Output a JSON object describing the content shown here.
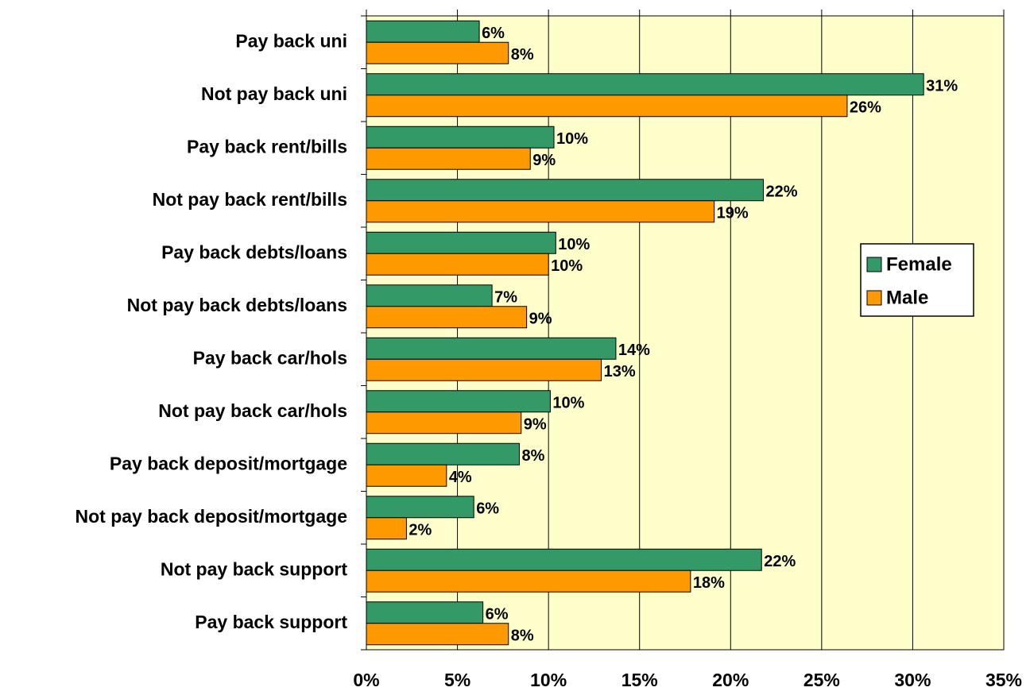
{
  "chart_data": {
    "type": "hbar",
    "categories": [
      "Pay back uni",
      "Not pay back uni",
      "Pay back rent/bills",
      "Not pay back rent/bills",
      "Pay back debts/loans",
      "Not pay back debts/loans",
      "Pay back car/hols",
      "Not pay back car/hols",
      "Pay back deposit/mortgage",
      "Not pay back deposit/mortgage",
      "Not pay back support",
      "Pay back support"
    ],
    "series": [
      {
        "name": "Female",
        "color": "#339966",
        "values": [
          6.2,
          30.6,
          10.3,
          21.8,
          10.4,
          6.9,
          13.7,
          10.1,
          8.4,
          5.9,
          21.7,
          6.4
        ],
        "value_labels": [
          "6%",
          "31%",
          "10%",
          "22%",
          "10%",
          "7%",
          "14%",
          "10%",
          "8%",
          "6%",
          "22%",
          "6%"
        ]
      },
      {
        "name": "Male",
        "color": "#ff9900",
        "values": [
          7.8,
          26.4,
          9.0,
          19.1,
          10.0,
          8.8,
          12.9,
          8.5,
          4.4,
          2.2,
          17.8,
          7.8
        ],
        "value_labels": [
          "8%",
          "26%",
          "9%",
          "19%",
          "10%",
          "9%",
          "13%",
          "9%",
          "4%",
          "2%",
          "18%",
          "8%"
        ]
      }
    ],
    "xlim": [
      0,
      35
    ],
    "xticks": [
      {
        "value": 0,
        "label": "0%"
      },
      {
        "value": 5,
        "label": "5%"
      },
      {
        "value": 10,
        "label": "10%"
      },
      {
        "value": 15,
        "label": "15%"
      },
      {
        "value": 20,
        "label": "20%"
      },
      {
        "value": 25,
        "label": "25%"
      },
      {
        "value": 30,
        "label": "30%"
      },
      {
        "value": 35,
        "label": "35%"
      }
    ],
    "grid": true,
    "legend": "right",
    "plot_background": "#ffffcc"
  }
}
